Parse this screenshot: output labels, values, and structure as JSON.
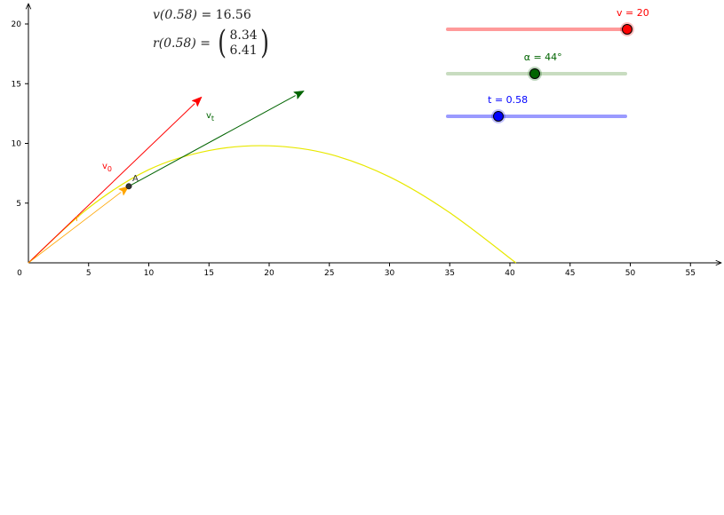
{
  "chart_data": {
    "type": "line",
    "title": "",
    "xlabel": "",
    "ylabel": "",
    "xlim": [
      0,
      57
    ],
    "ylim": [
      0,
      21
    ],
    "x_ticks": [
      "0",
      "5",
      "10",
      "15",
      "20",
      "25",
      "30",
      "35",
      "40",
      "45",
      "50",
      "55"
    ],
    "y_ticks": [
      "5",
      "10",
      "15",
      "20"
    ],
    "grid": false,
    "trajectory": {
      "color": "#e8e800",
      "points": [
        [
          0,
          0
        ],
        [
          4,
          3.77
        ],
        [
          8,
          6.75
        ],
        [
          12,
          8.93
        ],
        [
          16,
          10.32
        ],
        [
          20,
          10.91
        ],
        [
          24,
          10.7
        ],
        [
          28,
          9.69
        ],
        [
          32,
          7.89
        ],
        [
          36,
          5.29
        ],
        [
          40,
          1.89
        ],
        [
          40.8,
          1.11
        ]
      ],
      "shown_points": [
        [
          0,
          0
        ],
        [
          5,
          4.6
        ],
        [
          10,
          7.8
        ],
        [
          15,
          9.4
        ],
        [
          20,
          9.8
        ],
        [
          25,
          9.1
        ],
        [
          30,
          7.2
        ],
        [
          35,
          4.2
        ],
        [
          40.5,
          0
        ]
      ]
    },
    "vectors": [
      {
        "name": "v0",
        "label": "v",
        "sub": "0",
        "color": "#ff0000",
        "from": [
          0,
          0
        ],
        "to": [
          14.4,
          13.9
        ]
      },
      {
        "name": "r",
        "label": "r",
        "sub": "",
        "color": "#ffa500",
        "from": [
          0,
          0
        ],
        "to": [
          8.34,
          6.41
        ]
      },
      {
        "name": "vt",
        "label": "v",
        "sub": "t",
        "color": "#006400",
        "from": [
          8.34,
          6.41
        ],
        "to": [
          22.9,
          14.4
        ]
      }
    ],
    "point": {
      "label": "A",
      "x": 8.34,
      "y": 6.41,
      "color": "#333333"
    }
  },
  "formulas": {
    "v_lhs": "v(0.58)",
    "v_eq": " = ",
    "v_val": "16.56",
    "r_lhs": "r(0.58)",
    "r_eq": " = ",
    "r_x": "8.34",
    "r_y": "6.41"
  },
  "sliders": [
    {
      "name": "v",
      "label": "v = 20",
      "color": "#ff0000",
      "track_color": "#ff9a9a",
      "min": 0,
      "max": 20,
      "value": 20
    },
    {
      "name": "alpha",
      "label": "α = 44°",
      "color": "#006400",
      "track_color": "#c8dcc0",
      "min": 0,
      "max": 90,
      "value": 44
    },
    {
      "name": "t",
      "label": "t = 0.58",
      "color": "#0000ff",
      "track_color": "#9a9aff",
      "min": 0,
      "max": 2,
      "value": 0.58
    }
  ]
}
